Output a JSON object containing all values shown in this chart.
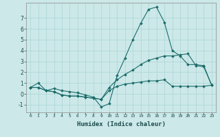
{
  "title": "",
  "xlabel": "Humidex (Indice chaleur)",
  "ylabel": "",
  "background_color": "#cce8e8",
  "grid_color": "#aad4d4",
  "line_color": "#1a6b6b",
  "xlim": [
    -0.5,
    23.5
  ],
  "ylim": [
    -1.7,
    8.4
  ],
  "yticks": [
    -1,
    0,
    1,
    2,
    3,
    4,
    5,
    6,
    7
  ],
  "xticks": [
    0,
    1,
    2,
    3,
    4,
    5,
    6,
    7,
    8,
    9,
    10,
    11,
    12,
    13,
    14,
    15,
    16,
    17,
    18,
    19,
    20,
    21,
    22,
    23
  ],
  "lines": [
    {
      "x": [
        0,
        1,
        2,
        3,
        4,
        5,
        6,
        7,
        8,
        9,
        10,
        11,
        12,
        13,
        14,
        15,
        16,
        17,
        18,
        19,
        20,
        21,
        22,
        23
      ],
      "y": [
        0.6,
        1.0,
        0.3,
        0.5,
        0.3,
        0.2,
        0.1,
        -0.1,
        -0.3,
        -1.2,
        -0.9,
        1.7,
        3.3,
        5.0,
        6.5,
        7.8,
        8.0,
        6.6,
        4.0,
        3.5,
        2.7,
        2.7,
        2.6,
        0.8
      ]
    },
    {
      "x": [
        0,
        1,
        2,
        3,
        4,
        5,
        6,
        7,
        8,
        9,
        10,
        11,
        12,
        13,
        14,
        15,
        16,
        17,
        18,
        19,
        20,
        21,
        22,
        23
      ],
      "y": [
        0.6,
        0.6,
        0.3,
        0.2,
        -0.1,
        -0.2,
        -0.2,
        -0.3,
        -0.4,
        -0.5,
        0.6,
        1.3,
        1.8,
        2.2,
        2.7,
        3.1,
        3.3,
        3.5,
        3.5,
        3.6,
        3.7,
        2.6,
        2.5,
        0.8
      ]
    },
    {
      "x": [
        0,
        1,
        2,
        3,
        4,
        5,
        6,
        7,
        8,
        9,
        10,
        11,
        12,
        13,
        14,
        15,
        16,
        17,
        18,
        19,
        20,
        21,
        22,
        23
      ],
      "y": [
        0.6,
        0.6,
        0.3,
        0.2,
        -0.1,
        -0.2,
        -0.2,
        -0.3,
        -0.4,
        -0.5,
        0.3,
        0.7,
        0.9,
        1.0,
        1.1,
        1.2,
        1.2,
        1.3,
        0.7,
        0.7,
        0.7,
        0.7,
        0.7,
        0.8
      ]
    }
  ]
}
